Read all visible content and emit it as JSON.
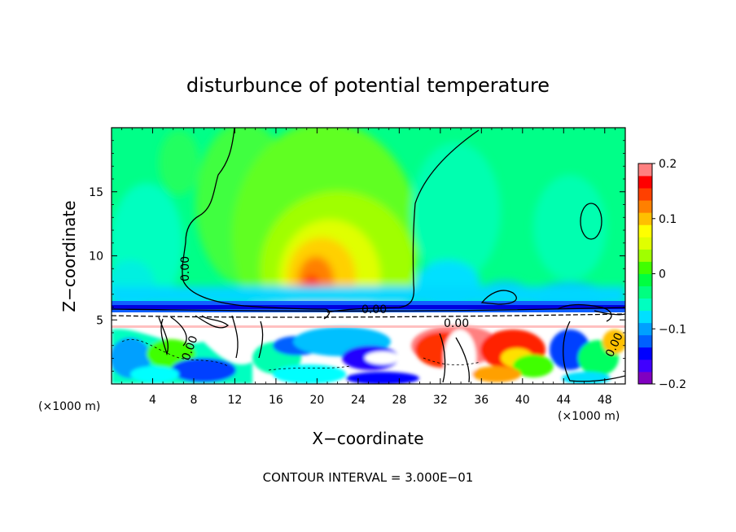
{
  "chart_data": {
    "type": "heatmap",
    "title": "disturbunce of potential temperature",
    "xlabel": "X−coordinate",
    "ylabel": "Z−coordinate",
    "x_unit_left": "(×1000 m)",
    "x_unit_right": "(×1000 m)",
    "footer": "CONTOUR INTERVAL = 3.000E−01",
    "xlim": [
      0,
      50
    ],
    "ylim": [
      0,
      20
    ],
    "x_ticks": [
      4,
      8,
      12,
      16,
      20,
      24,
      28,
      32,
      36,
      40,
      44,
      48
    ],
    "y_ticks": [
      5,
      10,
      15
    ],
    "colorbar": {
      "range": [
        -0.2,
        0.2
      ],
      "tick_values": [
        0.2,
        0.1,
        0,
        -0.1,
        -0.2
      ],
      "tick_labels": [
        "0.2",
        "0.1",
        "0",
        "−0.1",
        "−0.2"
      ],
      "colors": [
        "#8000c0",
        "#4000ff",
        "#0000ff",
        "#0060ff",
        "#00a0ff",
        "#00e0ff",
        "#00ffc0",
        "#00ff80",
        "#00ff40",
        "#40ff00",
        "#a0ff00",
        "#e0ff00",
        "#ffff00",
        "#ffc000",
        "#ff8000",
        "#ff4000",
        "#ff0000",
        "#ff8080"
      ]
    },
    "contour_labels": [
      "0.00",
      "0.00",
      "0.00",
      "0.00",
      "0.00"
    ]
  }
}
